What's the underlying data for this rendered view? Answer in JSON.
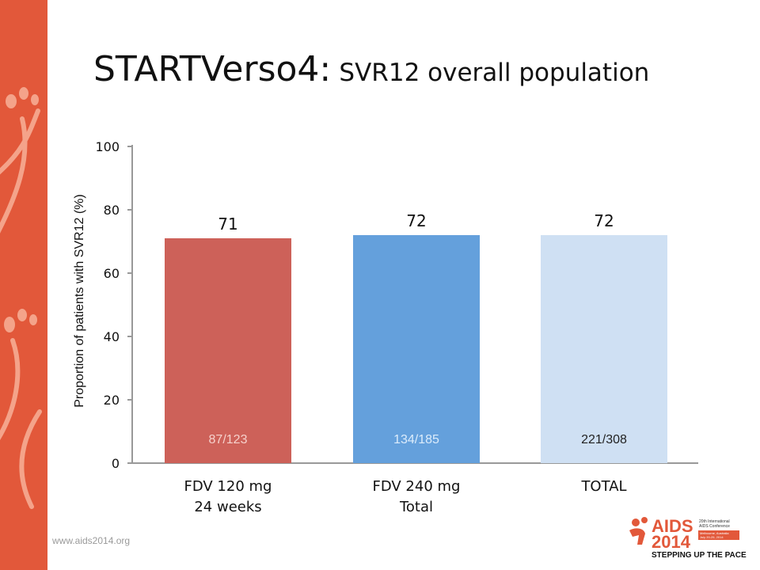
{
  "slide": {
    "title_main": "STARTVerso4:",
    "title_sub": "SVR12  overall population",
    "footer_url": "www.aids2014.org"
  },
  "logo": {
    "brand_top": "AIDS",
    "brand_year": "2014",
    "conf_line1": "20th International",
    "conf_line2": "AIDS Conference",
    "conf_line3": "Melbourne, Australia",
    "conf_dates": "July 20-25, 2014",
    "tagline": "STEPPING UP THE PACE"
  },
  "colors": {
    "side_band": "#e2583a",
    "bar_fdv120": "#cd6159",
    "bar_fdv240": "#64a0dc",
    "bar_total": "#cfe0f3",
    "logo_accent": "#e2583a"
  },
  "chart_data": {
    "type": "bar",
    "title": "",
    "ylabel": "Proportion of patients with SVR12 (%)",
    "xlabel": "",
    "ylim": [
      0,
      100
    ],
    "yticks": [
      0,
      20,
      40,
      60,
      80,
      100
    ],
    "grid": false,
    "categories": [
      {
        "line1": "FDV 120 mg",
        "line2": "24 weeks"
      },
      {
        "line1": "FDV 240 mg",
        "line2": "Total"
      },
      {
        "line1": "TOTAL",
        "line2": ""
      }
    ],
    "values": [
      71,
      72,
      72
    ],
    "value_labels": [
      "71",
      "72",
      "72"
    ],
    "fraction_labels": [
      "87/123",
      "134/185",
      "221/308"
    ],
    "bar_colors": [
      "#cd6159",
      "#64a0dc",
      "#cfe0f3"
    ],
    "fraction_label_colors": [
      "#f6d1cc",
      "#dcecfb",
      "#222222"
    ]
  }
}
